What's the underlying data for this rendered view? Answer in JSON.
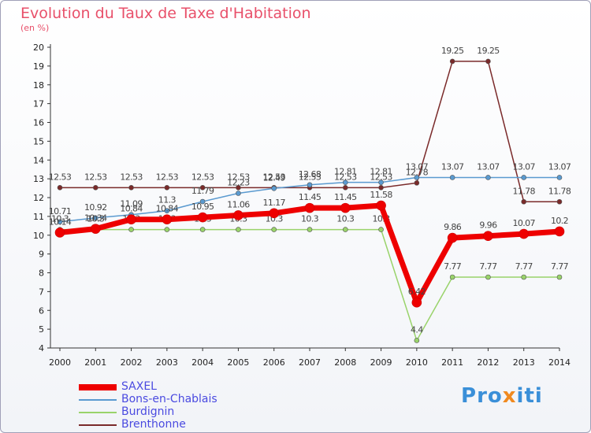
{
  "title": "Evolution du Taux de Taxe d'Habitation",
  "unit_label": "(en %)",
  "logo": {
    "text": "Proxiti",
    "colors": [
      "#3a8fd8",
      "#3a8fd8",
      "#3a8fd8",
      "#f08a20",
      "#3a8fd8",
      "#3a8fd8",
      "#3a8fd8"
    ]
  },
  "chart_data": {
    "type": "line",
    "title": "Evolution du Taux de Taxe d'Habitation",
    "ylabel": "(en %)",
    "xlabel": "",
    "ylim": [
      4,
      20
    ],
    "yticks": [
      4,
      5,
      6,
      7,
      8,
      9,
      10,
      11,
      12,
      13,
      14,
      15,
      16,
      17,
      18,
      19,
      20
    ],
    "grid": false,
    "legend_position": "bottom-left",
    "x": [
      "2000",
      "2001",
      "2002",
      "2003",
      "2004",
      "2005",
      "2006",
      "2007",
      "2008",
      "2009",
      "2010",
      "2011",
      "2012",
      "2013",
      "2014"
    ],
    "series": [
      {
        "name": "Brenthonne",
        "color": "#7a2a2a",
        "values": [
          12.53,
          12.53,
          12.53,
          12.53,
          12.53,
          12.53,
          12.53,
          12.53,
          12.53,
          12.53,
          12.78,
          19.25,
          19.25,
          11.78,
          11.78
        ],
        "labels": [
          "12.53",
          "12.53",
          "12.53",
          "12.53",
          "12.53",
          "12.53",
          "12.53",
          "12.53",
          "12.53",
          "12.53",
          "12.78",
          "19.25",
          "19.25",
          "11.78",
          "11.78"
        ]
      },
      {
        "name": "Bons-en-Chablais",
        "color": "#5a9ad0",
        "values": [
          10.71,
          10.92,
          11.09,
          11.3,
          11.79,
          12.23,
          12.49,
          12.68,
          12.81,
          12.81,
          13.07,
          13.07,
          13.07,
          13.07,
          13.07
        ],
        "labels": [
          "10.71",
          "10.92",
          "11.09",
          "11.3",
          "11.79",
          "12.23",
          "12.49",
          "12.68",
          "12.81",
          "12.81",
          "13.07",
          "13.07",
          "13.07",
          "13.07",
          "13.07"
        ]
      },
      {
        "name": "Burdignin",
        "color": "#99d36a",
        "values": [
          10.3,
          10.3,
          10.3,
          10.3,
          10.3,
          10.3,
          10.3,
          10.3,
          10.3,
          10.3,
          4.4,
          7.77,
          7.77,
          7.77,
          7.77
        ],
        "labels": [
          "10.3",
          "10.3",
          "10.3",
          "10.3",
          "10.3",
          "10.3",
          "10.3",
          "10.3",
          "10.3",
          "10.3",
          "4.4",
          "7.77",
          "7.77",
          "7.77",
          "7.77"
        ]
      },
      {
        "name": "SAXEL",
        "color": "#ee0000",
        "values": [
          10.14,
          10.34,
          10.84,
          10.84,
          10.95,
          11.06,
          11.17,
          11.45,
          11.45,
          11.58,
          6.42,
          9.86,
          9.96,
          10.07,
          10.2
        ],
        "labels": [
          "10.14",
          "10.34",
          "10.84",
          "10.84",
          "10.95",
          "11.06",
          "11.17",
          "11.45",
          "11.45",
          "11.58",
          "6.42",
          "9.86",
          "9.96",
          "10.07",
          "10.2"
        ]
      }
    ]
  },
  "legend": [
    {
      "name": "SAXEL",
      "color": "#ee0000"
    },
    {
      "name": "Bons-en-Chablais",
      "color": "#5a9ad0"
    },
    {
      "name": "Burdignin",
      "color": "#99d36a"
    },
    {
      "name": "Brenthonne",
      "color": "#7a2a2a"
    }
  ]
}
